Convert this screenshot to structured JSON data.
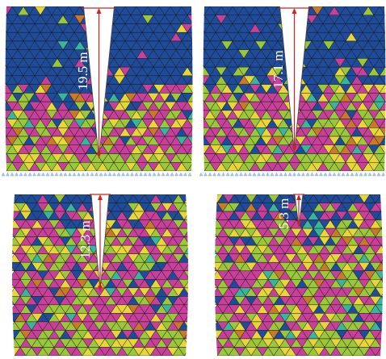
{
  "colors": {
    "blue": "#1f4c9a",
    "pink": "#c8409a",
    "green": "#9ac83a",
    "yellow": "#e6d63a",
    "orange": "#c87a2a",
    "teal": "#3ab49a",
    "mesh_line": "#1a1a1a",
    "arrow": "#d22020",
    "support": "#a6c8e6"
  },
  "panels": [
    {
      "label": "19.5 m"
    },
    {
      "label": "17.1 m"
    },
    {
      "label": "12.3 m"
    },
    {
      "label": "5.3 m"
    }
  ]
}
